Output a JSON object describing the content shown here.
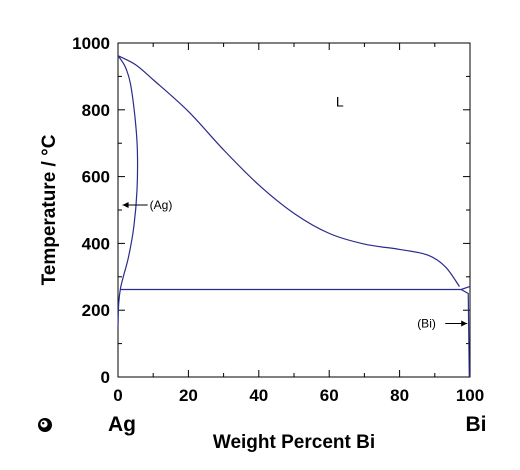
{
  "chart_data": {
    "type": "line",
    "title": "",
    "xlabel": "Weight Percent Bi",
    "ylabel": "Temperature / °C",
    "xlim": [
      0,
      100
    ],
    "ylim": [
      0,
      1000
    ],
    "x_ticks": [
      "0",
      "20",
      "40",
      "60",
      "80",
      "100"
    ],
    "y_ticks": [
      "0",
      "200",
      "400",
      "600",
      "800",
      "1000"
    ],
    "x_end_labels": {
      "left": "Ag",
      "right": "Bi"
    },
    "grid": false,
    "line_color": "#2b2b8c",
    "annotations": [
      {
        "text": "L",
        "x": 63,
        "y": 810
      },
      {
        "text": "(Ag)",
        "x": 9,
        "y": 515
      },
      {
        "text": "(Bi)",
        "x": 85,
        "y": 160
      }
    ],
    "curves": [
      {
        "id": "liquidus",
        "points": [
          [
            0,
            962
          ],
          [
            5,
            935
          ],
          [
            10,
            890
          ],
          [
            20,
            795
          ],
          [
            30,
            680
          ],
          [
            40,
            575
          ],
          [
            50,
            490
          ],
          [
            60,
            430
          ],
          [
            70,
            398
          ],
          [
            80,
            382
          ],
          [
            88,
            365
          ],
          [
            93,
            330
          ],
          [
            97,
            271
          ]
        ]
      },
      {
        "id": "solidus",
        "points": [
          [
            0,
            962
          ],
          [
            2,
            930
          ],
          [
            3.5,
            880
          ],
          [
            4.8,
            780
          ],
          [
            5.5,
            680
          ],
          [
            5.4,
            560
          ],
          [
            4.5,
            450
          ],
          [
            3,
            360
          ],
          [
            1.5,
            300
          ],
          [
            0.7,
            265
          ],
          [
            0.2,
            220
          ],
          [
            0,
            150
          ]
        ]
      },
      {
        "id": "eutectic",
        "points": [
          [
            0.7,
            262
          ],
          [
            97.5,
            262
          ],
          [
            100,
            271
          ]
        ]
      },
      {
        "id": "bi-boundary",
        "points": [
          [
            97.5,
            262
          ],
          [
            99.5,
            250
          ],
          [
            99.8,
            0
          ]
        ]
      }
    ]
  }
}
